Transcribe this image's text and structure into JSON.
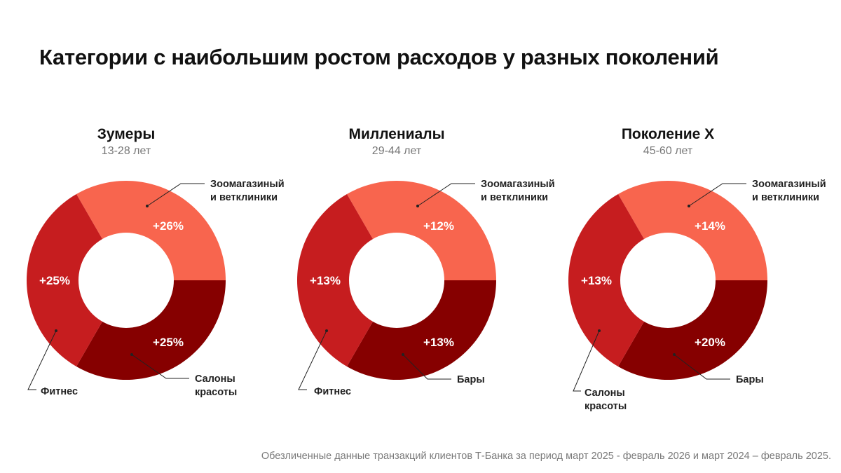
{
  "title": "Категории с наибольшим ростом расходов у разных поколений",
  "footnote": "Обезличенные данные транзакций клиентов Т-Банка за период март 2025 - февраль 2026 и март 2024 – февраль 2025.",
  "colors": {
    "light": "#F8654E",
    "medium": "#C61D1F",
    "dark": "#860000"
  },
  "chart_data": [
    {
      "type": "pie",
      "title": "Зумеры",
      "subtitle": "13-28 лет",
      "slices": [
        {
          "label": [
            "Зоомагазиный",
            "и ветклиники"
          ],
          "value_label": "+26%",
          "value": 26,
          "color": "light"
        },
        {
          "label": [
            "Салоны",
            "красоты"
          ],
          "value_label": "+25%",
          "value": 25,
          "color": "dark"
        },
        {
          "label": [
            "Фитнес"
          ],
          "value_label": "+25%",
          "value": 25,
          "color": "medium"
        }
      ]
    },
    {
      "type": "pie",
      "title": "Миллениалы",
      "subtitle": "29-44 лет",
      "slices": [
        {
          "label": [
            "Зоомагазиный",
            "и ветклиники"
          ],
          "value_label": "+12%",
          "value": 12,
          "color": "light"
        },
        {
          "label": [
            "Бары"
          ],
          "value_label": "+13%",
          "value": 13,
          "color": "dark"
        },
        {
          "label": [
            "Фитнес"
          ],
          "value_label": "+13%",
          "value": 13,
          "color": "medium"
        }
      ]
    },
    {
      "type": "pie",
      "title": "Поколение X",
      "subtitle": "45-60 лет",
      "slices": [
        {
          "label": [
            "Зоомагазиный",
            "и ветклиники"
          ],
          "value_label": "+14%",
          "value": 14,
          "color": "light"
        },
        {
          "label": [
            "Бары"
          ],
          "value_label": "+20%",
          "value": 20,
          "color": "dark"
        },
        {
          "label": [
            "Салоны",
            "красоты"
          ],
          "value_label": "+13%",
          "value": 13,
          "color": "medium"
        }
      ]
    }
  ]
}
